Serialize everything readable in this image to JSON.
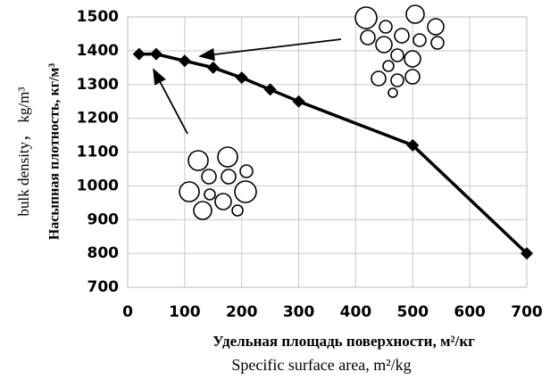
{
  "chart_data": {
    "type": "line",
    "x": [
      20,
      50,
      100,
      150,
      200,
      250,
      300,
      500,
      700
    ],
    "values": [
      1390,
      1390,
      1370,
      1350,
      1320,
      1285,
      1250,
      1120,
      800
    ],
    "color": "#000000",
    "xlim": [
      0,
      700
    ],
    "xticks": [
      0,
      100,
      200,
      300,
      400,
      500,
      600,
      700
    ],
    "ylim": [
      700,
      1500
    ],
    "yticks": [
      700,
      800,
      900,
      1000,
      1100,
      1200,
      1300,
      1400,
      1500
    ],
    "grid": true,
    "y_label_en": "bulk density， kg/m³",
    "y_label_ru": "Насыпная плотность, кг/м³",
    "x_label_ru": "Удельная площадь поверхности, м²/кг",
    "x_label_en": "Specific surface area, m²/kg"
  }
}
